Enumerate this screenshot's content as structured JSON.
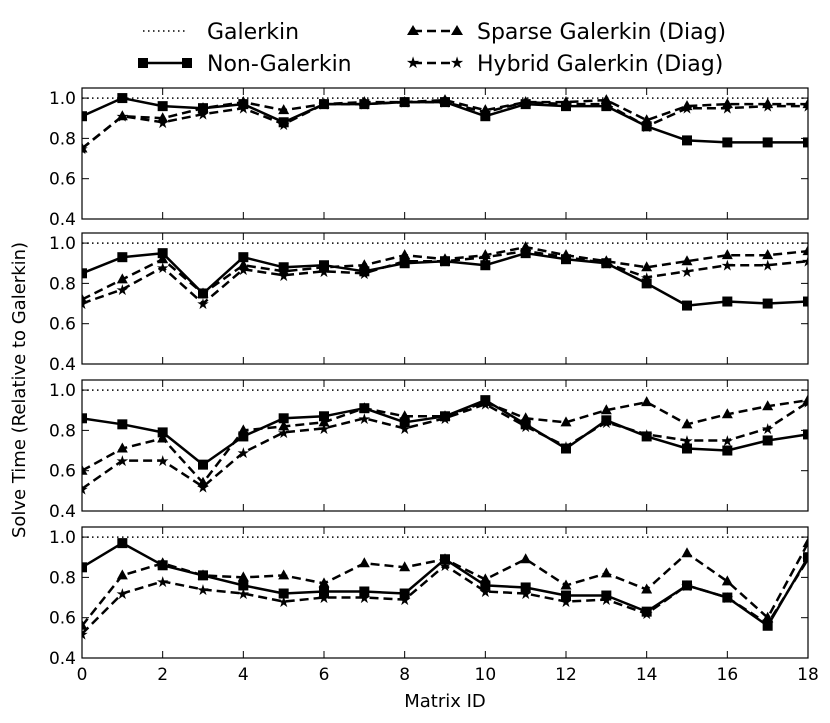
{
  "chart_data": {
    "type": "line",
    "xlabel": "Matrix ID",
    "ylabel": "Solve Time (Relative to Galerkin)",
    "xlim": [
      0,
      18
    ],
    "ylim": [
      0.4,
      1.05
    ],
    "x_ticks": [
      "0",
      "2",
      "4",
      "6",
      "8",
      "10",
      "12",
      "14",
      "16",
      "18"
    ],
    "y_ticks": [
      "0.4",
      "0.6",
      "0.8",
      "1.0"
    ],
    "legend": [
      {
        "name": "Galerkin",
        "style": "dotted",
        "marker": "none"
      },
      {
        "name": "Sparse Galerkin (Diag)",
        "style": "dashed",
        "marker": "triangle"
      },
      {
        "name": "Non-Galerkin",
        "style": "solid",
        "marker": "square"
      },
      {
        "name": "Hybrid Galerkin (Diag)",
        "style": "dashed",
        "marker": "star"
      }
    ],
    "x": [
      0,
      1,
      2,
      3,
      4,
      5,
      6,
      7,
      8,
      9,
      10,
      11,
      12,
      13,
      14,
      15,
      16,
      17,
      18
    ],
    "panels": [
      {
        "series": [
          {
            "name": "Galerkin",
            "values": [
              1,
              1,
              1,
              1,
              1,
              1,
              1,
              1,
              1,
              1,
              1,
              1,
              1,
              1,
              1,
              1,
              1,
              1,
              1
            ]
          },
          {
            "name": "Non-Galerkin",
            "values": [
              0.91,
              1.0,
              0.96,
              0.95,
              0.97,
              0.88,
              0.97,
              0.97,
              0.98,
              0.98,
              0.91,
              0.97,
              0.96,
              0.96,
              0.86,
              0.79,
              0.78,
              0.78,
              0.78
            ]
          },
          {
            "name": "Sparse Galerkin (Diag)",
            "values": [
              0.75,
              0.91,
              0.9,
              0.95,
              0.98,
              0.94,
              0.97,
              0.98,
              0.98,
              0.99,
              0.94,
              0.98,
              0.98,
              0.99,
              0.89,
              0.96,
              0.97,
              0.97,
              0.97
            ]
          },
          {
            "name": "Hybrid Galerkin (Diag)",
            "values": [
              0.75,
              0.91,
              0.88,
              0.92,
              0.95,
              0.87,
              0.97,
              0.97,
              0.98,
              0.98,
              0.93,
              0.98,
              0.97,
              0.97,
              0.86,
              0.95,
              0.95,
              0.96,
              0.96
            ]
          }
        ]
      },
      {
        "series": [
          {
            "name": "Galerkin",
            "values": [
              1,
              1,
              1,
              1,
              1,
              1,
              1,
              1,
              1,
              1,
              1,
              1,
              1,
              1,
              1,
              1,
              1,
              1,
              1
            ]
          },
          {
            "name": "Non-Galerkin",
            "values": [
              0.85,
              0.93,
              0.95,
              0.75,
              0.93,
              0.88,
              0.89,
              0.86,
              0.9,
              0.91,
              0.89,
              0.95,
              0.92,
              0.9,
              0.8,
              0.69,
              0.71,
              0.7,
              0.71
            ]
          },
          {
            "name": "Sparse Galerkin (Diag)",
            "values": [
              0.72,
              0.82,
              0.92,
              0.75,
              0.89,
              0.86,
              0.88,
              0.89,
              0.94,
              0.92,
              0.94,
              0.98,
              0.94,
              0.91,
              0.88,
              0.91,
              0.94,
              0.94,
              0.96
            ]
          },
          {
            "name": "Hybrid Galerkin (Diag)",
            "values": [
              0.7,
              0.77,
              0.88,
              0.7,
              0.87,
              0.84,
              0.86,
              0.85,
              0.91,
              0.91,
              0.93,
              0.96,
              0.93,
              0.9,
              0.83,
              0.86,
              0.89,
              0.89,
              0.91
            ]
          }
        ]
      },
      {
        "series": [
          {
            "name": "Galerkin",
            "values": [
              1,
              1,
              1,
              1,
              1,
              1,
              1,
              1,
              1,
              1,
              1,
              1,
              1,
              1,
              1,
              1,
              1,
              1,
              1
            ]
          },
          {
            "name": "Non-Galerkin",
            "values": [
              0.86,
              0.83,
              0.79,
              0.63,
              0.77,
              0.86,
              0.87,
              0.91,
              0.84,
              0.87,
              0.95,
              0.83,
              0.71,
              0.85,
              0.77,
              0.71,
              0.7,
              0.75,
              0.78
            ]
          },
          {
            "name": "Sparse Galerkin (Diag)",
            "values": [
              0.6,
              0.71,
              0.76,
              0.54,
              0.8,
              0.82,
              0.84,
              0.91,
              0.87,
              0.87,
              0.94,
              0.86,
              0.84,
              0.9,
              0.94,
              0.83,
              0.88,
              0.92,
              0.95
            ]
          },
          {
            "name": "Hybrid Galerkin (Diag)",
            "values": [
              0.51,
              0.65,
              0.65,
              0.52,
              0.69,
              0.79,
              0.81,
              0.86,
              0.81,
              0.86,
              0.93,
              0.82,
              0.72,
              0.84,
              0.78,
              0.75,
              0.75,
              0.81,
              0.94
            ]
          }
        ]
      },
      {
        "series": [
          {
            "name": "Galerkin",
            "values": [
              1,
              1,
              1,
              1,
              1,
              1,
              1,
              1,
              1,
              1,
              1,
              1,
              1,
              1,
              1,
              1,
              1,
              1,
              1
            ]
          },
          {
            "name": "Non-Galerkin",
            "values": [
              0.85,
              0.97,
              0.86,
              0.81,
              0.76,
              0.72,
              0.73,
              0.73,
              0.72,
              0.89,
              0.76,
              0.75,
              0.71,
              0.71,
              0.63,
              0.76,
              0.7,
              0.56,
              0.9
            ]
          },
          {
            "name": "Sparse Galerkin (Diag)",
            "values": [
              0.56,
              0.81,
              0.87,
              0.81,
              0.8,
              0.81,
              0.77,
              0.87,
              0.85,
              0.89,
              0.79,
              0.89,
              0.76,
              0.82,
              0.74,
              0.92,
              0.78,
              0.6,
              0.97
            ]
          },
          {
            "name": "Hybrid Galerkin (Diag)",
            "values": [
              0.52,
              0.72,
              0.78,
              0.74,
              0.72,
              0.68,
              0.7,
              0.7,
              0.69,
              0.86,
              0.73,
              0.72,
              0.68,
              0.69,
              0.62,
              0.76,
              0.7,
              0.57,
              0.89
            ]
          }
        ]
      }
    ]
  }
}
